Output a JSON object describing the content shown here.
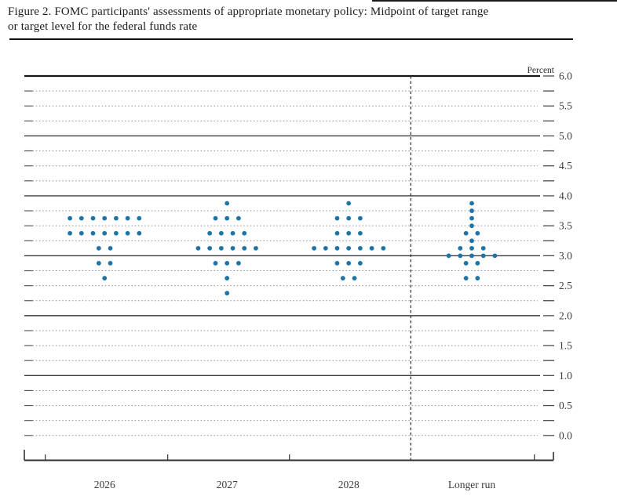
{
  "figure": {
    "title_line1": "Figure 2. FOMC participants' assessments of appropriate monetary policy: Midpoint of target range",
    "title_line2": "or target level for the federal funds rate"
  },
  "chart_data": {
    "type": "scatter",
    "subtype": "fomc-dot-plot",
    "title": "FOMC participants' assessments of appropriate monetary policy: Midpoint of target range or target level for the federal funds rate",
    "ylabel": "Percent",
    "ylim": [
      0.0,
      6.0
    ],
    "gridline_step": 0.25,
    "solid_gridlines_at": [
      6.0,
      5.0,
      4.0,
      3.0,
      2.0,
      1.0
    ],
    "ytick_label_step": 0.5,
    "ytick_labels": [
      "6.0",
      "5.5",
      "5.0",
      "4.5",
      "4.0",
      "3.5",
      "3.0",
      "2.5",
      "2.0",
      "1.5",
      "1.0",
      "0.5",
      "0.0"
    ],
    "grid": true,
    "legend": false,
    "categories": [
      "2026",
      "2027",
      "2028",
      "Longer run"
    ],
    "separator_before_category": "Longer run",
    "dot_color": "#1e74a8",
    "participants_per_column": 19,
    "series": [
      {
        "category": "2026",
        "distribution": [
          {
            "rate": 3.625,
            "count": 7
          },
          {
            "rate": 3.375,
            "count": 7
          },
          {
            "rate": 3.125,
            "count": 2
          },
          {
            "rate": 2.875,
            "count": 2
          },
          {
            "rate": 2.625,
            "count": 1
          }
        ]
      },
      {
        "category": "2027",
        "distribution": [
          {
            "rate": 3.875,
            "count": 1
          },
          {
            "rate": 3.625,
            "count": 3
          },
          {
            "rate": 3.375,
            "count": 4
          },
          {
            "rate": 3.125,
            "count": 6
          },
          {
            "rate": 2.875,
            "count": 3
          },
          {
            "rate": 2.625,
            "count": 1
          },
          {
            "rate": 2.375,
            "count": 1
          }
        ]
      },
      {
        "category": "2028",
        "distribution": [
          {
            "rate": 3.875,
            "count": 1
          },
          {
            "rate": 3.625,
            "count": 3
          },
          {
            "rate": 3.375,
            "count": 3
          },
          {
            "rate": 3.125,
            "count": 7
          },
          {
            "rate": 2.875,
            "count": 3
          },
          {
            "rate": 2.625,
            "count": 2
          }
        ]
      },
      {
        "category": "Longer run",
        "distribution": [
          {
            "rate": 3.875,
            "count": 1
          },
          {
            "rate": 3.75,
            "count": 1
          },
          {
            "rate": 3.625,
            "count": 1
          },
          {
            "rate": 3.5,
            "count": 1
          },
          {
            "rate": 3.375,
            "count": 2
          },
          {
            "rate": 3.25,
            "count": 1
          },
          {
            "rate": 3.125,
            "count": 3
          },
          {
            "rate": 3.0,
            "count": 5
          },
          {
            "rate": 2.875,
            "count": 2
          },
          {
            "rate": 2.625,
            "count": 2
          }
        ]
      }
    ]
  }
}
